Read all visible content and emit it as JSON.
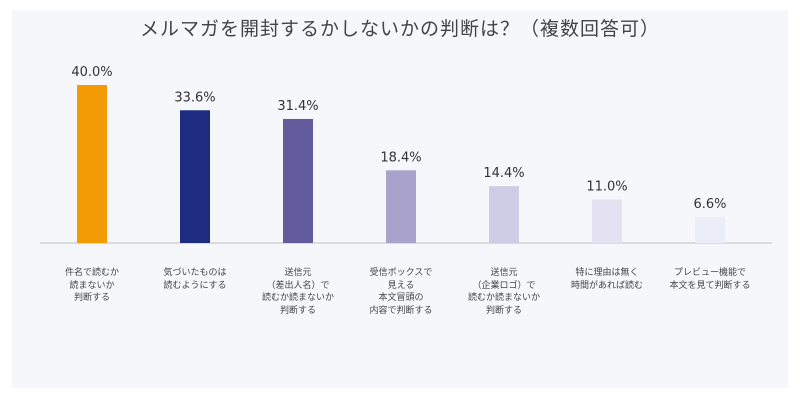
{
  "colors": {
    "panel": "#f6f7fb",
    "axis": "#bfbfbf",
    "text": "#333333"
  },
  "chart_data": {
    "type": "bar",
    "title": "メルマガを開封するかしないかの判断は？（複数回答可）",
    "xlabel": "",
    "ylabel": "",
    "ylim": [
      0,
      40
    ],
    "grid": false,
    "legend": "none",
    "categories": [
      [
        "件名で読むか",
        "読まないか",
        "判断する"
      ],
      [
        "気づいたものは",
        "読むようにする"
      ],
      [
        "送信元",
        "（差出人名）で",
        "読むか読まないか",
        "判断する"
      ],
      [
        "受信ボックスで",
        "見える",
        "本文冒頭の",
        "内容で判断する"
      ],
      [
        "送信元",
        "（企業ロゴ）で",
        "読むか読まないか",
        "判断する"
      ],
      [
        "特に理由は無く",
        "時間があれば読む"
      ],
      [
        "プレビュー機能で",
        "本文を見て判断する"
      ]
    ],
    "values": [
      40.0,
      33.6,
      31.4,
      18.4,
      14.4,
      11.0,
      6.6
    ],
    "data_labels": [
      "40.0%",
      "33.6%",
      "31.4%",
      "18.4%",
      "14.4%",
      "11.0%",
      "6.6%"
    ],
    "bar_colors": [
      "#f29b05",
      "#1d2b80",
      "#625b9c",
      "#a9a3cc",
      "#cfcce5",
      "#e4e2f2",
      "#ebeef9"
    ]
  }
}
